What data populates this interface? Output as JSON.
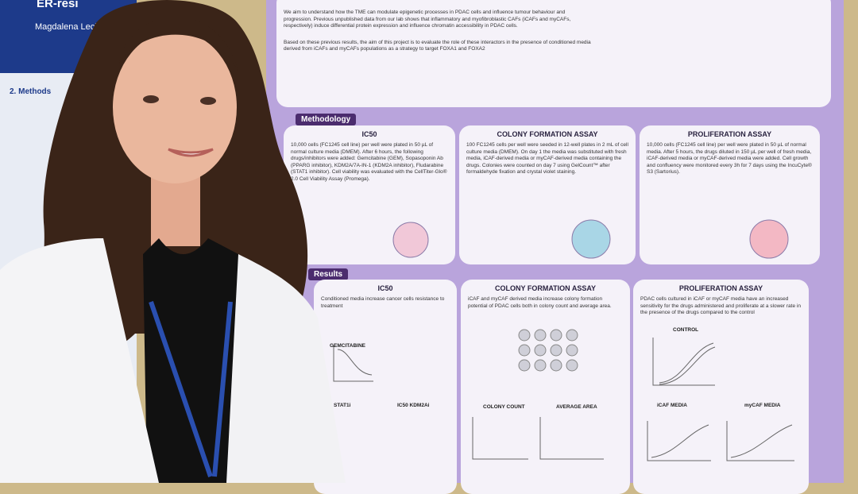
{
  "left_poster": {
    "title": "ER-resi",
    "author": "Magdalena Lechowska, H",
    "section": "2. Methods"
  },
  "poster": {
    "intro": "We aim to understand how the TME can modulate epigenetic processes in PDAC cells and influence tumour behaviour and progression. Previous unpublished data from our lab shows that inflammatory and myofibroblastic CAFs (iCAFs and myCAFs, respectively) induce differential protein expression and influence chromatin accessibility in PDAC cells.",
    "aim": "Based on these previous results, the aim of this project is to evaluate the role of these interactors in the presence of conditioned media derived from iCAFs and myCAFs populations as a strategy to target FOXA1 and FOXA2",
    "methodology": {
      "heading": "Methodology",
      "panels": [
        {
          "title": "IC50",
          "text": "10,000 cells (FC1245 cell line) per well were plated in 50 µL of normal culture media (DMEM). After 6 hours, the following drugs/inhibitors were added: Gemcitabine (GEM), Sopasoponin Ab (PPARG inhibitor), KDM2A/7A-IN-1 (KDM2A inhibitor), Fludarabine (STAT1 inhibitor). Cell viability was evaluated with the CellTiter-Glo® 2.0 Cell Viability Assay (Promega)."
        },
        {
          "title": "COLONY FORMATION ASSAY",
          "text": "100 FC1245 cells per well were seeded in 12-well plates in 2 mL of cell culture media (DMEM). On day 1 the media was substituted with fresh media, iCAF-derived media or myCAF-derived media containing the drugs. Colonies were counted on day 7 using GelCount™ after formaldehyde fixation and crystal violet staining."
        },
        {
          "title": "PROLIFERATION ASSAY",
          "text": "10,000 cells (FC1245 cell line) per well were plated in 50 µL of normal media. After 5 hours, the drugs diluted in 150 µL per well of fresh media, iCAF-derived media or myCAF-derived media were added. Cell growth and confluency were monitored every 3h for 7 days using the IncuCyte® S3 (Sartorius)."
        }
      ]
    },
    "results": {
      "heading": "Results",
      "panels": [
        {
          "title": "IC50",
          "text": "Conditioned media increase cancer cells resistance to treatment",
          "labels": [
            "GEMCITABINE",
            "STAT1i",
            "IC50 KDM2Ai"
          ]
        },
        {
          "title": "COLONY FORMATION ASSAY",
          "text": "iCAF and myCAF derived media increase colony formation potential of PDAC cells both in colony count and average area.",
          "labels": [
            "COLONY COUNT",
            "AVERAGE AREA"
          ]
        },
        {
          "title": "PROLIFERATION ASSAY",
          "text": "PDAC cells cultured in iCAF or myCAF media have an increased sensitivity for the drugs administered and proliferate at a slower rate in the presence of the drugs compared to the control",
          "labels": [
            "CONTROL",
            "iCAF MEDIA",
            "myCAF MEDIA"
          ]
        }
      ]
    }
  }
}
